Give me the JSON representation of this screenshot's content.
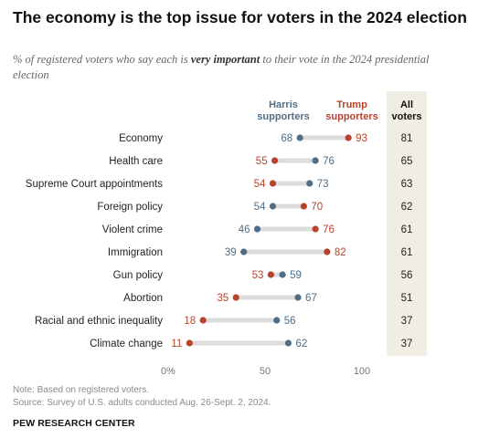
{
  "title": "The economy is the top issue for voters in the 2024 election",
  "subtitle_pre": "% of registered voters who say each is ",
  "subtitle_bold": "very important",
  "subtitle_post": " to their vote in the 2024 presidential election",
  "note": "Note: Based on registered voters.",
  "source": "Source: Survey of U.S. adults conducted Aug. 26-Sept. 2, 2024.",
  "brand": "PEW RESEARCH CENTER",
  "chart_data": {
    "type": "dot",
    "categories": [
      "Economy",
      "Health care",
      "Supreme Court appointments",
      "Foreign policy",
      "Violent crime",
      "Immigration",
      "Gun policy",
      "Abortion",
      "Racial and ethnic inequality",
      "Climate change"
    ],
    "series": [
      {
        "name": "Harris supporters",
        "values": [
          68,
          76,
          73,
          54,
          46,
          39,
          59,
          67,
          56,
          62
        ],
        "color": "#4f6d85"
      },
      {
        "name": "Trump supporters",
        "values": [
          93,
          55,
          54,
          70,
          76,
          82,
          53,
          35,
          18,
          11
        ],
        "color": "#b8422e"
      }
    ],
    "all_voters": {
      "label": "All voters",
      "values": [
        81,
        65,
        63,
        62,
        61,
        61,
        56,
        51,
        37,
        37
      ]
    },
    "xlim": [
      0,
      100
    ],
    "xticks": [
      {
        "value": 0,
        "label": "0%"
      },
      {
        "value": 50,
        "label": "50"
      },
      {
        "value": 100,
        "label": "100"
      }
    ],
    "colors": {
      "harris": "#4f6d85",
      "trump": "#b8422e",
      "connector": "#dcdcdc",
      "all_voters_bg": "#f0ede4"
    }
  }
}
